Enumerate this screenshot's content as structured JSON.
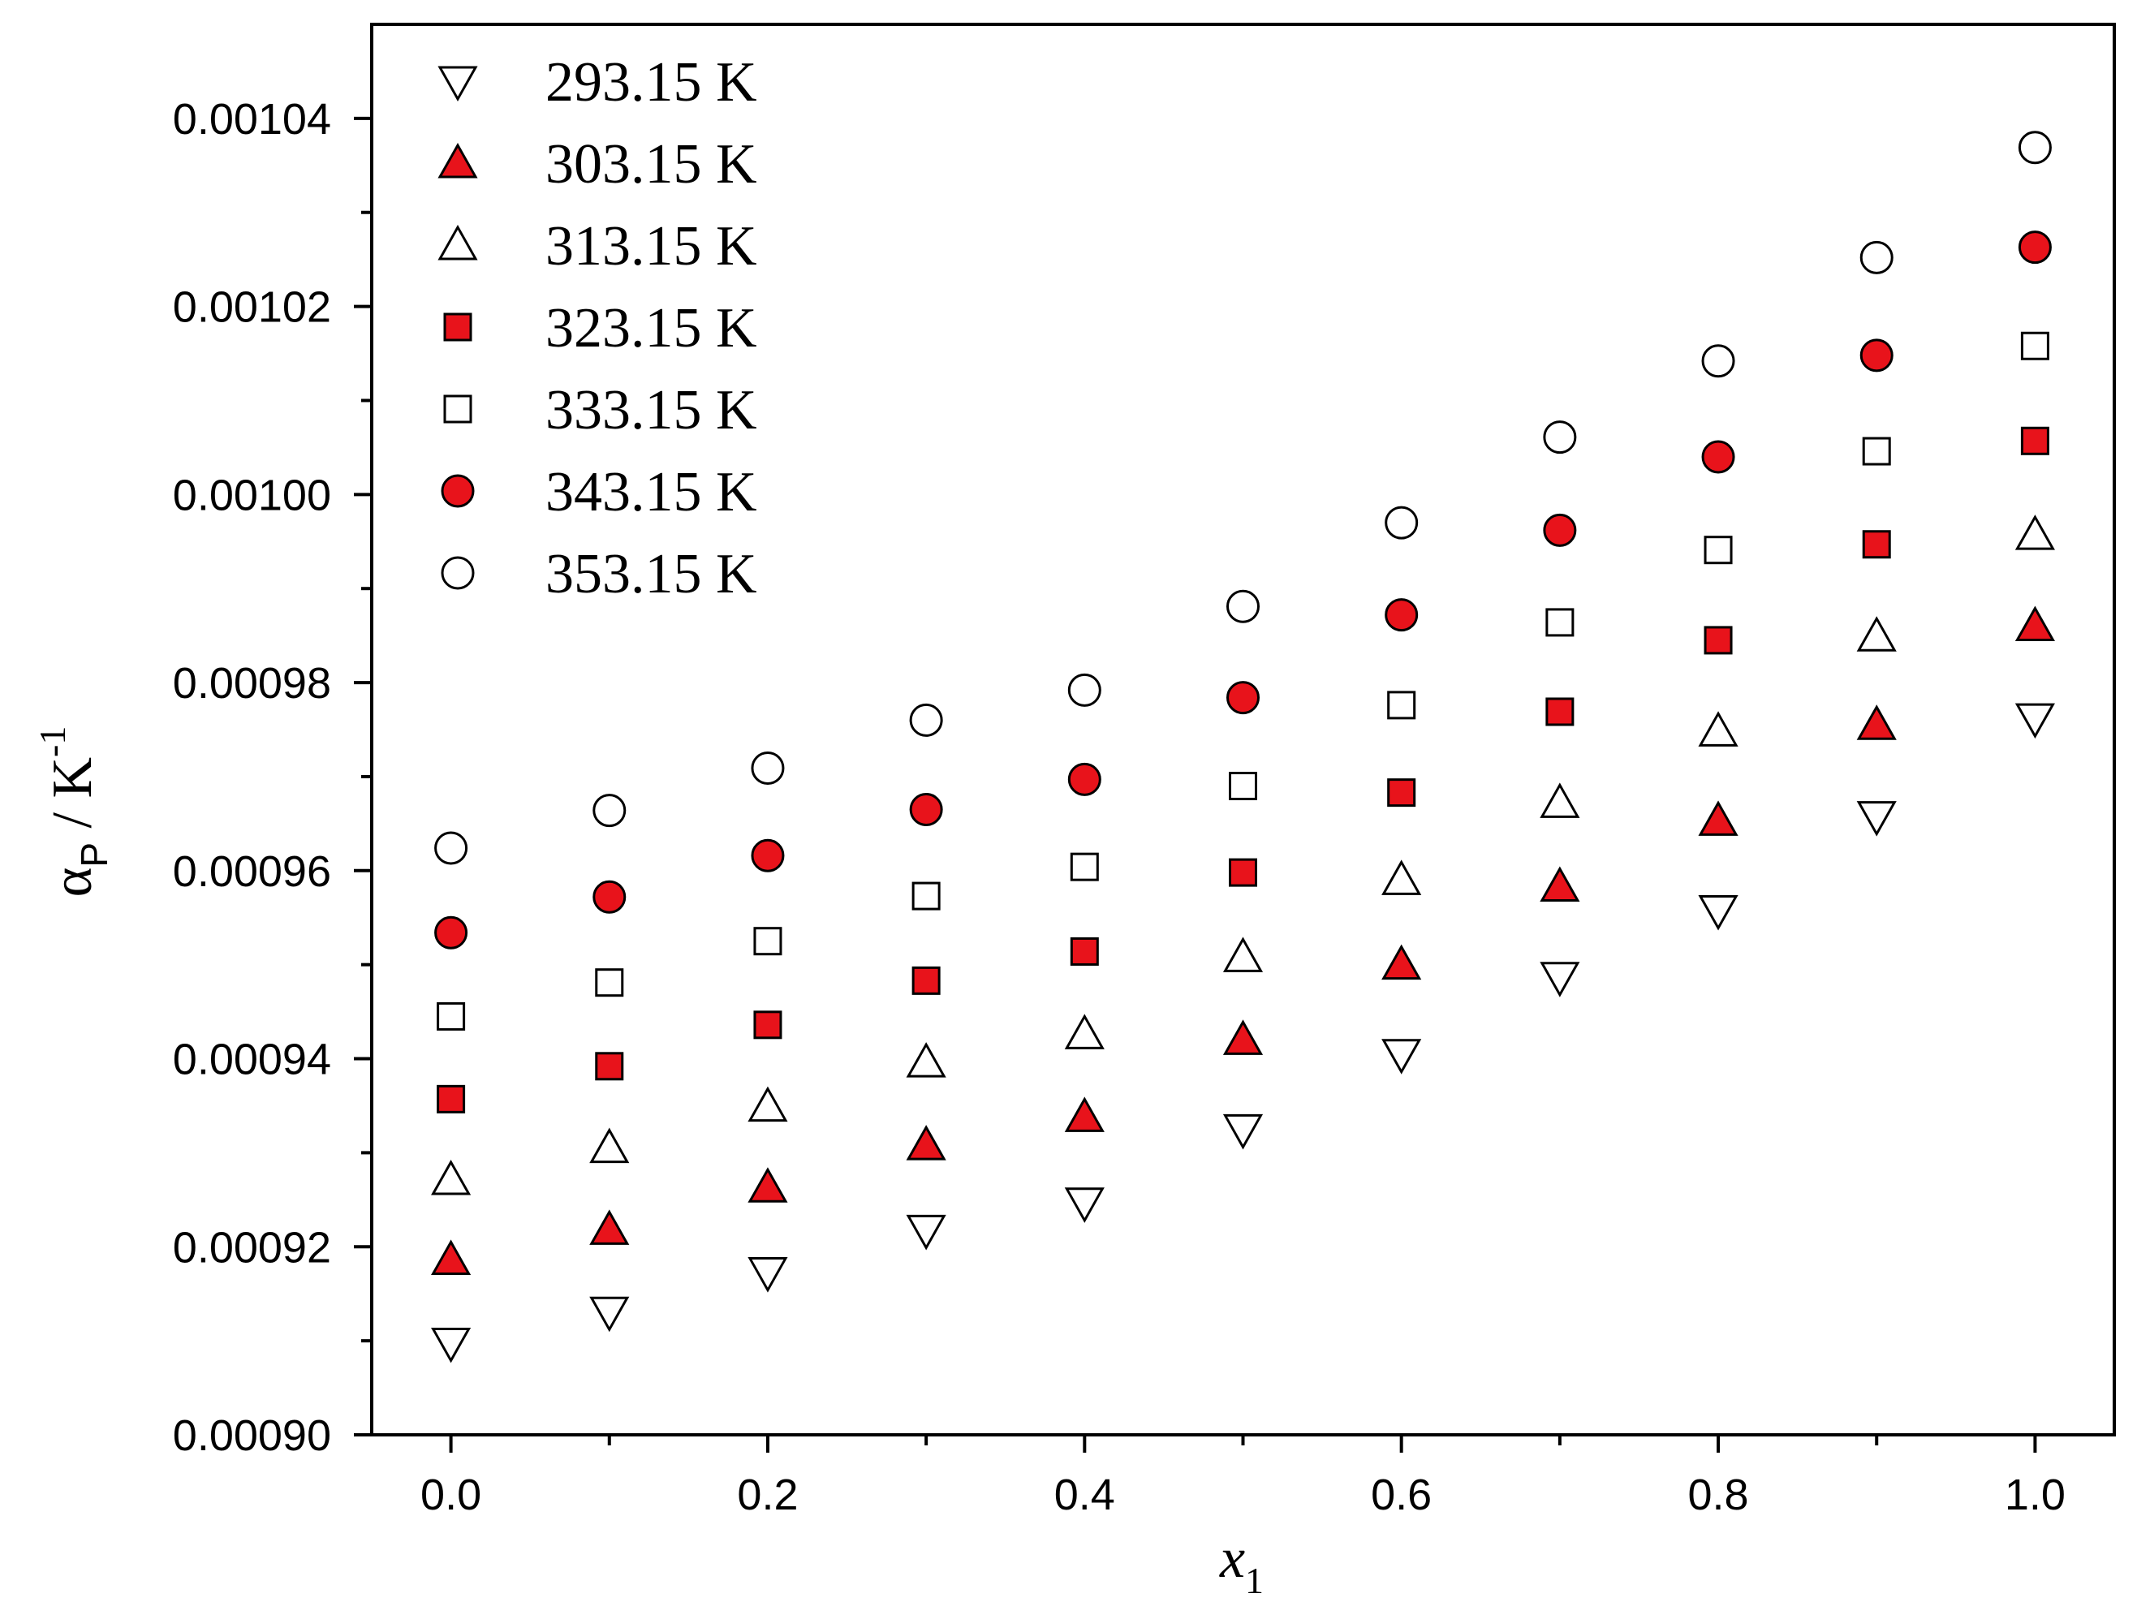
{
  "chart_data": {
    "type": "scatter",
    "xlabel": {
      "main": "x",
      "sub": "1"
    },
    "ylabel": {
      "symbol": "α",
      "sub": "P",
      "sep": "/",
      "unit": "K",
      "sup": "-1"
    },
    "xlim": [
      -0.05,
      1.05
    ],
    "ylim": [
      0.0009,
      0.00105
    ],
    "x_ticks": [
      0.0,
      0.2,
      0.4,
      0.6,
      0.8,
      1.0
    ],
    "x_tick_labels": [
      "0.0",
      "0.2",
      "0.4",
      "0.6",
      "0.8",
      "1.0"
    ],
    "x_minor_ticks": [
      0.1,
      0.3,
      0.5,
      0.7,
      0.9
    ],
    "y_ticks": [
      0.0009,
      0.00092,
      0.00094,
      0.00096,
      0.00098,
      0.001,
      0.00102,
      0.00104
    ],
    "y_tick_labels": [
      "0.00090",
      "0.00092",
      "0.00094",
      "0.00096",
      "0.00098",
      "0.00100",
      "0.00102",
      "0.00104"
    ],
    "y_minor_ticks": [
      0.00091,
      0.00093,
      0.00095,
      0.00097,
      0.00099,
      0.00101,
      0.00103
    ],
    "grid": false,
    "legend_position": "top-left",
    "x": [
      0.0,
      0.1,
      0.2,
      0.3,
      0.4,
      0.5,
      0.6,
      0.7,
      0.8,
      0.9,
      1.0
    ],
    "series": [
      {
        "name": "293.15 K",
        "marker": "triangle-down",
        "fill": "#ffffff",
        "values": [
          0.0009098,
          0.0009131,
          0.0009173,
          0.0009218,
          0.0009247,
          0.0009325,
          0.0009405,
          0.0009487,
          0.0009558,
          0.0009658,
          0.0009762
        ]
      },
      {
        "name": "303.15 K",
        "marker": "triangle-up",
        "fill": "#e8131b",
        "values": [
          0.0009186,
          0.0009218,
          0.0009263,
          0.0009308,
          0.0009338,
          0.000942,
          0.00095,
          0.0009583,
          0.0009653,
          0.0009755,
          0.000986
        ]
      },
      {
        "name": "313.15 K",
        "marker": "triangle-up",
        "fill": "#ffffff",
        "values": [
          0.0009271,
          0.0009305,
          0.0009349,
          0.0009396,
          0.0009426,
          0.0009508,
          0.000959,
          0.0009672,
          0.0009748,
          0.0009849,
          0.0009957
        ]
      },
      {
        "name": "323.15 K",
        "marker": "square",
        "fill": "#e8131b",
        "values": [
          0.0009357,
          0.0009392,
          0.0009436,
          0.0009483,
          0.0009514,
          0.0009598,
          0.0009683,
          0.0009769,
          0.0009845,
          0.0009947,
          0.0010057
        ]
      },
      {
        "name": "333.15 K",
        "marker": "square",
        "fill": "#ffffff",
        "values": [
          0.0009445,
          0.0009481,
          0.0009525,
          0.0009573,
          0.0009604,
          0.000969,
          0.0009776,
          0.0009864,
          0.0009941,
          0.0010046,
          0.0010158
        ]
      },
      {
        "name": "343.15 K",
        "marker": "circle",
        "fill": "#e8131b",
        "values": [
          0.0009534,
          0.0009572,
          0.0009616,
          0.0009665,
          0.0009697,
          0.0009784,
          0.0009872,
          0.0009962,
          0.001004,
          0.0010148,
          0.0010263
        ]
      },
      {
        "name": "353.15 K",
        "marker": "circle",
        "fill": "#ffffff",
        "values": [
          0.0009624,
          0.0009664,
          0.0009709,
          0.000976,
          0.0009792,
          0.0009881,
          0.000997,
          0.0010061,
          0.0010142,
          0.0010252,
          0.0010369
        ]
      }
    ]
  }
}
